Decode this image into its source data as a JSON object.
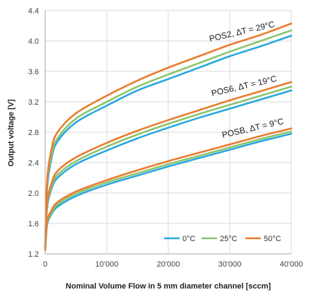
{
  "chart_data": {
    "type": "line",
    "xlabel": "Nominal Volume Flow in 5 mm diameter channel [sccm]",
    "ylabel": "Output voltage [V]",
    "xlim": [
      0,
      40000
    ],
    "ylim": [
      1.2,
      4.4
    ],
    "x_ticks": [
      0,
      10000,
      20000,
      30000,
      40000
    ],
    "x_tick_labels": [
      "0",
      "10'000",
      "20'000",
      "30'000",
      "40'000"
    ],
    "y_ticks": [
      1.2,
      1.6,
      2.0,
      2.4,
      2.8,
      3.2,
      3.6,
      4.0,
      4.4
    ],
    "y_tick_labels": [
      "1.2",
      "1.6",
      "2.0",
      "2.4",
      "2.8",
      "3.2",
      "3.6",
      "4.0",
      "4.4"
    ],
    "grid": true,
    "legend_position": "bottom-right",
    "legend": [
      {
        "label": "0°C",
        "color": "#29a8de"
      },
      {
        "label": "25°C",
        "color": "#8cc46c"
      },
      {
        "label": "50°C",
        "color": "#e97c2f"
      }
    ],
    "annotations": [
      {
        "text": "POS2, ΔT = 29°C",
        "x": 35000,
        "y": 4.24
      },
      {
        "text": "POS6, ΔT = 19°C",
        "x": 35000,
        "y": 3.4
      },
      {
        "text": "POSB, ΔT = 9°C",
        "x": 35000,
        "y": 2.82
      }
    ],
    "x": [
      0,
      300,
      1000,
      2000,
      5000,
      10000,
      15000,
      20000,
      25000,
      30000,
      35000,
      40000
    ],
    "groups": [
      {
        "name": "POS2, ΔT = 29°C",
        "series": [
          {
            "name": "0°C",
            "color": "#29a8de",
            "values": [
              1.3,
              2.05,
              2.45,
              2.68,
              2.93,
              3.15,
              3.35,
              3.5,
              3.65,
              3.8,
              3.93,
              4.07
            ]
          },
          {
            "name": "25°C",
            "color": "#8cc46c",
            "values": [
              1.3,
              2.1,
              2.5,
              2.72,
              2.98,
              3.2,
              3.4,
              3.56,
              3.71,
              3.86,
              4.0,
              4.14
            ]
          },
          {
            "name": "50°C",
            "color": "#e97c2f",
            "values": [
              1.3,
              2.15,
              2.57,
              2.8,
              3.05,
              3.28,
              3.48,
              3.65,
              3.8,
              3.95,
              4.08,
              4.23
            ]
          }
        ]
      },
      {
        "name": "POS6, ΔT = 19°C",
        "series": [
          {
            "name": "0°C",
            "color": "#29a8de",
            "values": [
              1.28,
              1.8,
              2.05,
              2.2,
              2.38,
              2.56,
              2.72,
              2.86,
              2.99,
              3.11,
              3.23,
              3.35
            ]
          },
          {
            "name": "25°C",
            "color": "#8cc46c",
            "values": [
              1.28,
              1.83,
              2.08,
              2.24,
              2.42,
              2.61,
              2.77,
              2.91,
              3.04,
              3.16,
              3.28,
              3.4
            ]
          },
          {
            "name": "50°C",
            "color": "#e97c2f",
            "values": [
              1.28,
              1.86,
              2.12,
              2.29,
              2.47,
              2.66,
              2.82,
              2.96,
              3.09,
              3.22,
              3.34,
              3.46
            ]
          }
        ]
      },
      {
        "name": "POSB, ΔT = 9°C",
        "series": [
          {
            "name": "0°C",
            "color": "#29a8de",
            "values": [
              1.25,
              1.58,
              1.72,
              1.82,
              1.96,
              2.11,
              2.23,
              2.35,
              2.46,
              2.57,
              2.68,
              2.78
            ]
          },
          {
            "name": "25°C",
            "color": "#8cc46c",
            "values": [
              1.25,
              1.6,
              1.74,
              1.85,
              1.99,
              2.14,
              2.26,
              2.38,
              2.49,
              2.6,
              2.71,
              2.81
            ]
          },
          {
            "name": "50°C",
            "color": "#e97c2f",
            "values": [
              1.25,
              1.62,
              1.77,
              1.88,
              2.02,
              2.17,
              2.3,
              2.42,
              2.53,
              2.64,
              2.75,
              2.85
            ]
          }
        ]
      }
    ]
  }
}
